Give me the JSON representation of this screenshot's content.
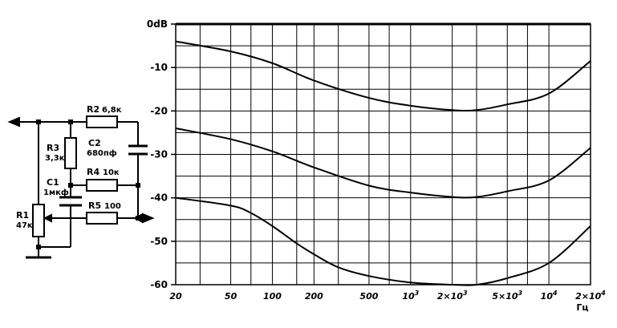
{
  "schematic": {
    "components": {
      "R1": {
        "name": "R1",
        "value": "47к"
      },
      "R2": {
        "name": "R2",
        "value": "6,8к"
      },
      "R3": {
        "name": "R3",
        "value": "3,3к"
      },
      "R4": {
        "name": "R4",
        "value": "10к"
      },
      "R5": {
        "name": "R5",
        "value": "100"
      },
      "C1": {
        "name": "C1",
        "value": "1мкф"
      },
      "C2": {
        "name": "C2",
        "value": "680пф"
      }
    }
  },
  "chart_data": {
    "type": "line",
    "title": "",
    "xlabel": "",
    "ylabel": "",
    "x_unit": "Гц",
    "x_scale": "log",
    "xlim": [
      20,
      20000
    ],
    "ylim": [
      -60,
      0
    ],
    "grid": true,
    "y_ticks": [
      {
        "value": 0,
        "label": "0dB"
      },
      {
        "value": -10,
        "label": "-10"
      },
      {
        "value": -20,
        "label": "-20"
      },
      {
        "value": -30,
        "label": "-30"
      },
      {
        "value": -40,
        "label": "-40"
      },
      {
        "value": -50,
        "label": "-50"
      },
      {
        "value": -60,
        "label": "-60"
      }
    ],
    "x_ticks": [
      {
        "value": 20,
        "base": "20",
        "exp": ""
      },
      {
        "value": 50,
        "base": "50",
        "exp": ""
      },
      {
        "value": 100,
        "base": "100",
        "exp": ""
      },
      {
        "value": 200,
        "base": "200",
        "exp": ""
      },
      {
        "value": 500,
        "base": "500",
        "exp": ""
      },
      {
        "value": 1000,
        "base": "10",
        "exp": "3"
      },
      {
        "value": 2000,
        "base": "2×10",
        "exp": "3"
      },
      {
        "value": 5000,
        "base": "5×10",
        "exp": "3"
      },
      {
        "value": 10000,
        "base": "10",
        "exp": "4"
      },
      {
        "value": 20000,
        "base": "2×10",
        "exp": "4"
      }
    ],
    "series": [
      {
        "values": [
          [
            20,
            0
          ],
          [
            20000,
            0
          ]
        ]
      },
      {
        "values": [
          [
            20,
            -4
          ],
          [
            50,
            -6.3
          ],
          [
            100,
            -9
          ],
          [
            200,
            -13
          ],
          [
            500,
            -17
          ],
          [
            1000,
            -18.8
          ],
          [
            2000,
            -19.8
          ],
          [
            3000,
            -19.8
          ],
          [
            5000,
            -18.5
          ],
          [
            10000,
            -16
          ],
          [
            20000,
            -8.5
          ]
        ]
      },
      {
        "values": [
          [
            20,
            -24
          ],
          [
            50,
            -26.5
          ],
          [
            100,
            -29.3
          ],
          [
            200,
            -33
          ],
          [
            500,
            -37.2
          ],
          [
            1000,
            -38.8
          ],
          [
            2000,
            -39.8
          ],
          [
            3000,
            -39.8
          ],
          [
            5000,
            -38.5
          ],
          [
            10000,
            -36
          ],
          [
            20000,
            -28.5
          ]
        ]
      },
      {
        "values": [
          [
            20,
            -40
          ],
          [
            50,
            -41.8
          ],
          [
            70,
            -43.5
          ],
          [
            100,
            -46.5
          ],
          [
            150,
            -50.5
          ],
          [
            200,
            -53
          ],
          [
            300,
            -56
          ],
          [
            500,
            -58
          ],
          [
            1000,
            -59.5
          ],
          [
            2000,
            -60
          ],
          [
            3000,
            -60
          ],
          [
            5000,
            -58.5
          ],
          [
            10000,
            -55
          ],
          [
            20000,
            -46.5
          ]
        ]
      }
    ]
  }
}
